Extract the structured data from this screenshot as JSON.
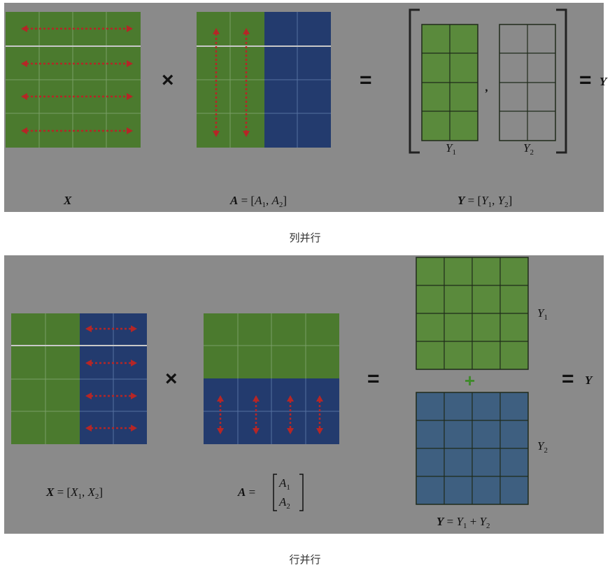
{
  "captions": {
    "column_parallel": "列并行",
    "row_parallel": "行并行"
  },
  "column_parallel_panel": {
    "x_label": "X",
    "a_label_bold": "A",
    "a_label_eq": " = [",
    "a_label_a1": "A",
    "a_label_a1_sub": "1",
    "a_label_sep": ", ",
    "a_label_a2": "A",
    "a_label_a2_sub": "2",
    "a_label_close": "]",
    "y_label_bold": "Y",
    "y_label_eq": " = [",
    "y_label_y1": "Y",
    "y_label_y1_sub": "1",
    "y_label_sep": ", ",
    "y_label_y2": "Y",
    "y_label_y2_sub": "2",
    "y_label_close": "]",
    "y1_label": "Y",
    "y1_sub": "1",
    "y2_label": "Y",
    "y2_sub": "2",
    "times_symbol": "×",
    "equals_symbol": "=",
    "comma_symbol": ",",
    "result_equals": "=",
    "result_label": "Y"
  },
  "row_parallel_panel": {
    "x_label_bold": "X",
    "x_label_eq": " = [",
    "x_label_x1": "X",
    "x_label_x1_sub": "1",
    "x_label_sep": ", ",
    "x_label_x2": "X",
    "x_label_x2_sub": "2",
    "x_label_close": "]",
    "a_label_bold": "A",
    "a_label_eq": " =",
    "a_stack_a1": "A",
    "a_stack_a1_sub": "1",
    "a_stack_a2": "A",
    "a_stack_a2_sub": "2",
    "y1_label": "Y",
    "y1_sub": "1",
    "y2_label": "Y",
    "y2_sub": "2",
    "sum_label_bold": "Y",
    "sum_label_eq": " = ",
    "sum_label_y1": "Y",
    "sum_label_y1_sub": "1",
    "sum_label_plus": " + ",
    "sum_label_y2": "Y",
    "sum_label_y2_sub": "2",
    "times_symbol": "×",
    "equals_symbol": "=",
    "plus_symbol": "+",
    "result_equals": "=",
    "result_label": "Y"
  },
  "colors": {
    "panel_bg": "#8a8a8a",
    "green": "#4b7a2e",
    "blue": "#233b6e",
    "light_green": "#5a8a3c",
    "steel_blue": "#3e5f80",
    "arrow_red": "#b52626",
    "plus_green": "#3f8a2a"
  }
}
